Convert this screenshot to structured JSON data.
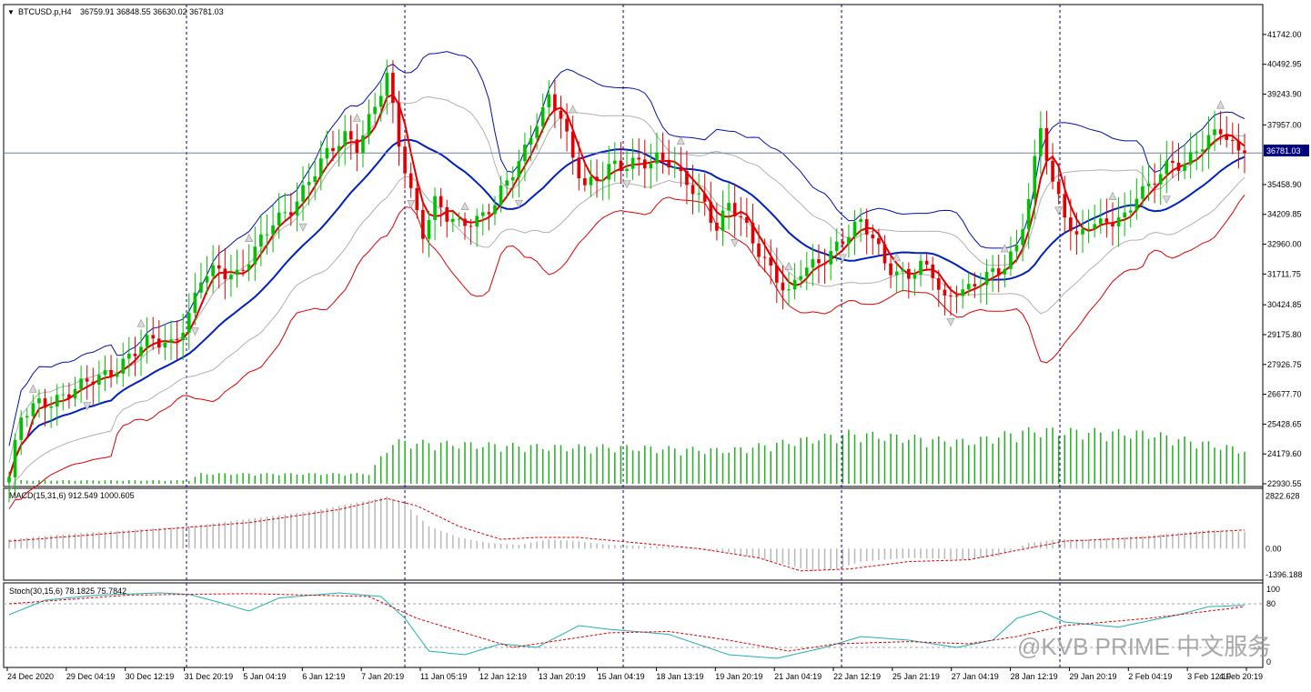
{
  "chart_header": {
    "symbol": "BTCUSD.p,H4",
    "ohlc": "36759.91 36848.55 36630.02 36781.03"
  },
  "current_price_label": "36781.03",
  "watermark": "@KVB PRIME 中文服务",
  "colors": {
    "bull_candle": "#00c000",
    "bear_candle": "#e00000",
    "ma_fast": "#e00000",
    "ma_mid": "#0020c0",
    "band_outer_upper": "#0010b0",
    "band_outer_lower": "#e00000",
    "band_inner": "#b0b0b0",
    "volume": "#20b020",
    "macd_hist": "#b8b8b8",
    "macd_signal": "#e00000",
    "stoch_main": "#20b0b0",
    "stoch_signal": "#e00000",
    "axis_text": "#000000",
    "grid_vline": "#000080"
  },
  "chart_data": [
    {
      "type": "candlestick",
      "title": "BTCUSD.p,H4",
      "x_labels": [
        "24 Dec 2020",
        "29 Dec 04:19",
        "30 Dec 12:19",
        "31 Dec 20:19",
        "5 Jan 04:19",
        "6 Jan 12:19",
        "7 Jan 20:19",
        "11 Jan 05:19",
        "12 Jan 12:19",
        "13 Jan 20:19",
        "15 Jan 04:19",
        "18 Jan 13:19",
        "19 Jan 20:19",
        "21 Jan 04:19",
        "22 Jan 12:19",
        "25 Jan 21:19",
        "27 Jan 04:19",
        "28 Jan 12:19",
        "29 Jan 20:19",
        "2 Feb 04:19",
        "3 Feb 12:19",
        "4 Feb 20:19"
      ],
      "y_ticks": [
        "41742.00",
        "40492.95",
        "39243.90",
        "37957.00",
        "36781.03",
        "35458.90",
        "34209.85",
        "32960.00",
        "31711.75",
        "30424.85",
        "29175.80",
        "27926.75",
        "26677.70",
        "25428.65",
        "24179.60",
        "22930.55"
      ],
      "ylim": [
        22930.55,
        42500
      ],
      "current_price": 36781.03,
      "close_path": [
        [
          0,
          23200
        ],
        [
          2,
          25600
        ],
        [
          5,
          26300
        ],
        [
          8,
          26600
        ],
        [
          12,
          26900
        ],
        [
          15,
          27400
        ],
        [
          18,
          27900
        ],
        [
          21,
          28400
        ],
        [
          24,
          28900
        ],
        [
          27,
          28900
        ],
        [
          30,
          29900
        ],
        [
          32,
          31400
        ],
        [
          35,
          31900
        ],
        [
          38,
          31800
        ],
        [
          41,
          32600
        ],
        [
          44,
          33800
        ],
        [
          47,
          34600
        ],
        [
          50,
          35600
        ],
        [
          53,
          36600
        ],
        [
          56,
          37600
        ],
        [
          58,
          37200
        ],
        [
          61,
          38600
        ],
        [
          63,
          39900
        ],
        [
          65,
          37200
        ],
        [
          67,
          35300
        ],
        [
          69,
          33500
        ],
        [
          71,
          34600
        ],
        [
          73,
          34000
        ],
        [
          75,
          33800
        ],
        [
          77,
          34100
        ],
        [
          79,
          34200
        ],
        [
          81,
          34600
        ],
        [
          83,
          35400
        ],
        [
          86,
          37000
        ],
        [
          88,
          38300
        ],
        [
          90,
          39000
        ],
        [
          92,
          38200
        ],
        [
          94,
          36400
        ],
        [
          96,
          35600
        ],
        [
          98,
          35800
        ],
        [
          100,
          36200
        ],
        [
          102,
          36000
        ],
        [
          104,
          36300
        ],
        [
          106,
          36500
        ],
        [
          108,
          36700
        ],
        [
          110,
          36400
        ],
        [
          112,
          35600
        ],
        [
          114,
          35200
        ],
        [
          116,
          34700
        ],
        [
          118,
          33800
        ],
        [
          120,
          34600
        ],
        [
          122,
          33900
        ],
        [
          124,
          33000
        ],
        [
          126,
          32400
        ],
        [
          128,
          31700
        ],
        [
          130,
          30800
        ],
        [
          132,
          31700
        ],
        [
          134,
          32000
        ],
        [
          136,
          32500
        ],
        [
          138,
          33000
        ],
        [
          140,
          33400
        ],
        [
          142,
          33700
        ],
        [
          144,
          33200
        ],
        [
          146,
          32300
        ],
        [
          148,
          31900
        ],
        [
          150,
          31600
        ],
        [
          152,
          31900
        ],
        [
          154,
          31700
        ],
        [
          156,
          30700
        ],
        [
          158,
          31200
        ],
        [
          160,
          31000
        ],
        [
          162,
          31300
        ],
        [
          164,
          31700
        ],
        [
          166,
          32200
        ],
        [
          168,
          33000
        ],
        [
          170,
          34800
        ],
        [
          172,
          37700
        ],
        [
          174,
          35400
        ],
        [
          176,
          34400
        ],
        [
          178,
          33300
        ],
        [
          180,
          33800
        ],
        [
          182,
          33600
        ],
        [
          184,
          33900
        ],
        [
          186,
          34200
        ],
        [
          188,
          35200
        ],
        [
          190,
          35300
        ],
        [
          192,
          35800
        ],
        [
          194,
          36300
        ],
        [
          196,
          36400
        ],
        [
          198,
          37100
        ],
        [
          200,
          37300
        ],
        [
          202,
          37600
        ],
        [
          204,
          37000
        ],
        [
          206,
          36781
        ]
      ],
      "volume_ylim": [
        0,
        1
      ],
      "volume_profile": [
        [
          0,
          0.02
        ],
        [
          30,
          0.02
        ],
        [
          32,
          0.06
        ],
        [
          60,
          0.06
        ],
        [
          64,
          0.25
        ],
        [
          90,
          0.22
        ],
        [
          100,
          0.22
        ],
        [
          120,
          0.2
        ],
        [
          140,
          0.3
        ],
        [
          160,
          0.25
        ],
        [
          170,
          0.32
        ],
        [
          190,
          0.3
        ],
        [
          206,
          0.2
        ]
      ],
      "series": [
        {
          "name": "MA fast",
          "role": "ma_fast"
        },
        {
          "name": "MA mid",
          "role": "ma_mid"
        },
        {
          "name": "Band upper",
          "role": "band_outer_upper"
        },
        {
          "name": "Band lower",
          "role": "band_outer_lower"
        }
      ]
    },
    {
      "type": "area",
      "title": "MACD(15,31,6) 912.549 1000.605",
      "y_ticks": [
        "2822.628",
        "0.00",
        "-1396.188"
      ],
      "ylim": [
        -1600,
        3000
      ],
      "hist_path": [
        [
          0,
          500
        ],
        [
          10,
          800
        ],
        [
          20,
          1000
        ],
        [
          30,
          1200
        ],
        [
          40,
          1600
        ],
        [
          50,
          2000
        ],
        [
          60,
          2600
        ],
        [
          63,
          2800
        ],
        [
          66,
          2400
        ],
        [
          70,
          1200
        ],
        [
          75,
          600
        ],
        [
          80,
          300
        ],
        [
          85,
          200
        ],
        [
          90,
          500
        ],
        [
          95,
          400
        ],
        [
          100,
          200
        ],
        [
          110,
          100
        ],
        [
          120,
          -200
        ],
        [
          126,
          -600
        ],
        [
          130,
          -900
        ],
        [
          134,
          -1200
        ],
        [
          138,
          -1100
        ],
        [
          142,
          -700
        ],
        [
          150,
          -500
        ],
        [
          160,
          -600
        ],
        [
          165,
          -400
        ],
        [
          170,
          300
        ],
        [
          175,
          500
        ],
        [
          180,
          500
        ],
        [
          190,
          700
        ],
        [
          200,
          1000
        ],
        [
          206,
          912
        ]
      ],
      "signal_path": [
        [
          0,
          400
        ],
        [
          20,
          900
        ],
        [
          40,
          1400
        ],
        [
          55,
          2100
        ],
        [
          63,
          2700
        ],
        [
          68,
          2300
        ],
        [
          75,
          1200
        ],
        [
          82,
          500
        ],
        [
          88,
          600
        ],
        [
          95,
          600
        ],
        [
          105,
          300
        ],
        [
          115,
          0
        ],
        [
          125,
          -500
        ],
        [
          132,
          -1200
        ],
        [
          140,
          -1100
        ],
        [
          150,
          -700
        ],
        [
          160,
          -600
        ],
        [
          168,
          -100
        ],
        [
          176,
          400
        ],
        [
          190,
          600
        ],
        [
          200,
          900
        ],
        [
          206,
          1000
        ]
      ]
    },
    {
      "type": "line",
      "title": "Stoch(30,15,6) 78.1825 75.7842",
      "y_ticks": [
        "100",
        "80",
        "0"
      ],
      "ylim": [
        0,
        100
      ],
      "main_path": [
        [
          0,
          65
        ],
        [
          6,
          85
        ],
        [
          15,
          92
        ],
        [
          25,
          95
        ],
        [
          30,
          93
        ],
        [
          35,
          82
        ],
        [
          40,
          70
        ],
        [
          45,
          88
        ],
        [
          55,
          95
        ],
        [
          62,
          90
        ],
        [
          66,
          60
        ],
        [
          70,
          15
        ],
        [
          76,
          10
        ],
        [
          82,
          25
        ],
        [
          88,
          20
        ],
        [
          95,
          50
        ],
        [
          100,
          45
        ],
        [
          110,
          38
        ],
        [
          120,
          10
        ],
        [
          128,
          5
        ],
        [
          136,
          20
        ],
        [
          142,
          35
        ],
        [
          150,
          30
        ],
        [
          158,
          20
        ],
        [
          164,
          30
        ],
        [
          168,
          60
        ],
        [
          172,
          70
        ],
        [
          176,
          55
        ],
        [
          185,
          48
        ],
        [
          195,
          65
        ],
        [
          200,
          76
        ],
        [
          206,
          78
        ]
      ],
      "signal_path": [
        [
          0,
          80
        ],
        [
          20,
          92
        ],
        [
          40,
          94
        ],
        [
          60,
          90
        ],
        [
          68,
          60
        ],
        [
          76,
          40
        ],
        [
          84,
          20
        ],
        [
          92,
          30
        ],
        [
          100,
          40
        ],
        [
          110,
          42
        ],
        [
          120,
          30
        ],
        [
          130,
          15
        ],
        [
          138,
          25
        ],
        [
          150,
          28
        ],
        [
          160,
          25
        ],
        [
          168,
          35
        ],
        [
          176,
          50
        ],
        [
          190,
          60
        ],
        [
          206,
          76
        ]
      ],
      "levels": [
        80,
        20
      ]
    }
  ]
}
